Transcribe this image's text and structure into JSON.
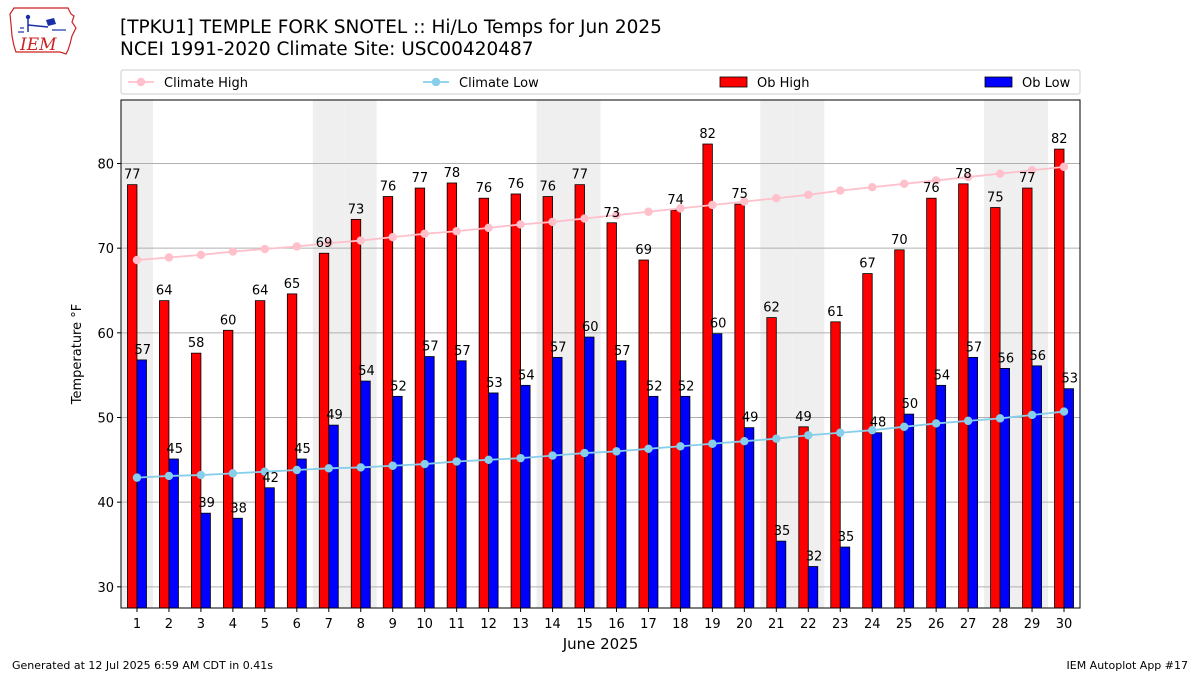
{
  "header": {
    "title_line1": "[TPKU1] TEMPLE FORK SNOTEL :: Hi/Lo Temps for Jun 2025",
    "title_line2": "NCEI 1991-2020 Climate Site: USC00420487",
    "logo_text": "IEM"
  },
  "footer": {
    "generated": "Generated at 12 Jul 2025 6:59 AM CDT in 0.41s",
    "app": "IEM Autoplot App #17"
  },
  "chart_data": {
    "type": "bar",
    "xlabel": "June 2025",
    "ylabel": "Temperature °F",
    "ylim": [
      27.5,
      87.5
    ],
    "yticks": [
      30,
      40,
      50,
      60,
      70,
      80
    ],
    "grid": true,
    "legend_placement": "top, above plot",
    "categories": [
      "1",
      "2",
      "3",
      "4",
      "5",
      "6",
      "7",
      "8",
      "9",
      "10",
      "11",
      "12",
      "13",
      "14",
      "15",
      "16",
      "17",
      "18",
      "19",
      "20",
      "21",
      "22",
      "23",
      "24",
      "25",
      "26",
      "27",
      "28",
      "29",
      "30"
    ],
    "weekend_days": [
      1,
      7,
      8,
      14,
      15,
      21,
      22,
      28,
      29
    ],
    "series": [
      {
        "name": "Ob High",
        "kind": "bar",
        "color": "#ff0000",
        "values": [
          77.5,
          63.8,
          57.6,
          60.3,
          63.8,
          64.6,
          69.4,
          73.4,
          76.1,
          77.1,
          77.7,
          75.9,
          76.4,
          76.1,
          77.5,
          73.0,
          68.6,
          74.5,
          82.3,
          75.2,
          61.8,
          48.9,
          61.3,
          67.0,
          69.8,
          75.9,
          77.6,
          74.8,
          77.1,
          81.7
        ],
        "labels": [
          "77",
          "64",
          "58",
          "60",
          "64",
          "65",
          "69",
          "73",
          "76",
          "77",
          "78",
          "76",
          "76",
          "76",
          "77",
          "73",
          "69",
          "74",
          "82",
          "75",
          "62",
          "49",
          "61",
          "67",
          "70",
          "76",
          "78",
          "75",
          "77",
          "82"
        ]
      },
      {
        "name": "Ob Low",
        "kind": "bar",
        "color": "#0000ff",
        "values": [
          56.8,
          45.1,
          38.7,
          38.1,
          41.7,
          45.1,
          49.1,
          54.3,
          52.5,
          57.2,
          56.7,
          52.9,
          53.8,
          57.1,
          59.5,
          56.7,
          52.5,
          52.5,
          59.9,
          48.8,
          35.4,
          32.4,
          34.7,
          48.2,
          50.4,
          53.8,
          57.1,
          55.8,
          56.1,
          53.4
        ],
        "labels": [
          "57",
          "45",
          "39",
          "38",
          "42",
          "45",
          "49",
          "54",
          "52",
          "57",
          "57",
          "53",
          "54",
          "57",
          "60",
          "57",
          "52",
          "52",
          "60",
          "49",
          "35",
          "32",
          "35",
          "48",
          "50",
          "54",
          "57",
          "56",
          "56",
          "53"
        ]
      },
      {
        "name": "Climate High",
        "kind": "line",
        "color": "#ffc0cb",
        "values": [
          68.6,
          68.9,
          69.2,
          69.6,
          69.9,
          70.2,
          70.6,
          70.9,
          71.3,
          71.7,
          72.0,
          72.4,
          72.8,
          73.1,
          73.5,
          73.9,
          74.3,
          74.7,
          75.1,
          75.5,
          75.9,
          76.3,
          76.8,
          77.2,
          77.6,
          78.0,
          78.4,
          78.8,
          79.2,
          79.6
        ]
      },
      {
        "name": "Climate Low",
        "kind": "line",
        "color": "#87ceeb",
        "values": [
          42.9,
          43.1,
          43.2,
          43.4,
          43.6,
          43.8,
          44.0,
          44.1,
          44.3,
          44.5,
          44.8,
          45.0,
          45.2,
          45.5,
          45.8,
          46.0,
          46.3,
          46.6,
          46.9,
          47.2,
          47.5,
          47.9,
          48.2,
          48.5,
          48.9,
          49.3,
          49.6,
          49.9,
          50.3,
          50.7
        ]
      }
    ]
  }
}
